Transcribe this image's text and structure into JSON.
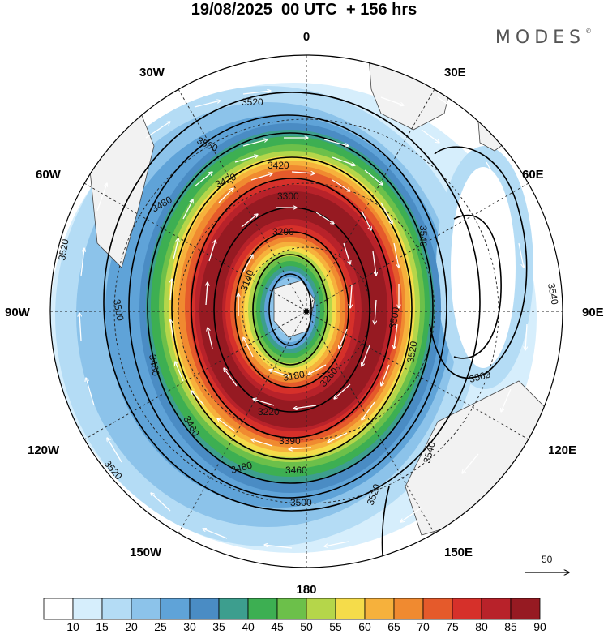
{
  "title": "19/08/2025  00 UTC  + 156 hrs",
  "brand": "MODES",
  "brand_mark": "©",
  "longitude_labels": {
    "lon_0": "0",
    "lon_30e": "30E",
    "lon_60e": "60E",
    "lon_90e": "90E",
    "lon_120e": "120E",
    "lon_150e": "150E",
    "lon_180": "180",
    "lon_150w": "150W",
    "lon_120w": "120W",
    "lon_90w": "90W",
    "lon_60w": "60W",
    "lon_30w": "30W"
  },
  "reference_vector": {
    "label": "50"
  },
  "height_contours": {
    "h3520_top": "3520",
    "h3500_top": "3500",
    "h3420_left": "3420",
    "h3420_top": "3420",
    "h3480_left": "3480",
    "h3300": "3300",
    "h3200": "3200",
    "h3140": "3140",
    "h3180": "3180",
    "h3260": "3260",
    "h3220": "3220",
    "h3390": "3390",
    "h3460_bot": "3460",
    "h3480_bot": "3480",
    "h3500_bot": "3500",
    "h3520_bot": "3520",
    "h3520_right": "3520",
    "h3540_right": "3540",
    "h3540_far": "3540",
    "h3560": "3560",
    "h3540_lower": "3540",
    "h3520_left": "3520",
    "h3500_left": "3500",
    "h3480_wleft": "3480",
    "h3460_wleft": "3460",
    "h3520_sw": "3520",
    "h3540_top": "3540",
    "h3500_mid": "3500"
  },
  "colorbar": {
    "labels": [
      "10",
      "15",
      "20",
      "25",
      "30",
      "35",
      "40",
      "45",
      "50",
      "55",
      "60",
      "65",
      "70",
      "75",
      "80",
      "85",
      "90"
    ],
    "colors": [
      "#ffffff",
      "#d6eefc",
      "#b4dcf5",
      "#8cc3ea",
      "#5fa3d8",
      "#4a8cc4",
      "#3d9e8e",
      "#3daf52",
      "#6cc04a",
      "#b5d64a",
      "#f5dc4a",
      "#f6b13c",
      "#f08a30",
      "#e55a2b",
      "#d6302a",
      "#b8222a",
      "#961a22"
    ]
  },
  "wind_speed_map": {
    "units_levels": [
      10,
      15,
      20,
      25,
      30,
      35,
      40,
      45,
      50,
      55,
      60,
      65,
      70,
      75,
      80,
      85,
      90
    ],
    "vortex_core_level": 90,
    "pole_marker": "south-pole"
  }
}
